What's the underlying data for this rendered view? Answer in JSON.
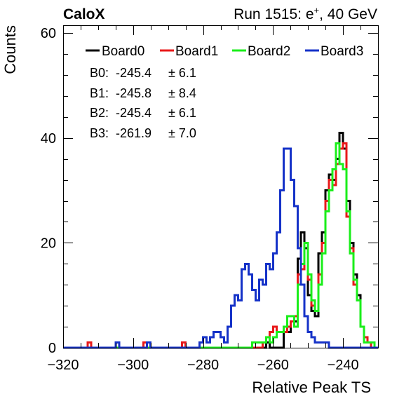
{
  "header": {
    "experiment": "CaloX",
    "run_prefix": "Run 1515: e",
    "run_sup": "+",
    "run_suffix": ", 40 GeV"
  },
  "stats": [
    {
      "label": "B0:",
      "mean": "-245.4",
      "err": "± 6.1"
    },
    {
      "label": "B1:",
      "mean": "-245.8",
      "err": "± 8.4"
    },
    {
      "label": "B2:",
      "mean": "-245.4",
      "err": "± 6.1"
    },
    {
      "label": "B3:",
      "mean": "-261.9",
      "err": "± 7.0"
    }
  ],
  "chart_data": {
    "type": "step",
    "xlabel": "Relative Peak TS",
    "ylabel": "Counts",
    "xlim": [
      -320,
      -230
    ],
    "ylim": [
      0,
      61.5
    ],
    "x_ticks": [
      -320,
      -300,
      -280,
      -260,
      -240
    ],
    "y_ticks": [
      0,
      20,
      40,
      60
    ],
    "bin_width": 1,
    "grid": false,
    "legend": "top",
    "series": [
      {
        "name": "Board0",
        "color": "#000000",
        "bins": [
          [
            -262,
            1
          ],
          [
            -257,
            4
          ],
          [
            -256,
            3
          ],
          [
            -255,
            5
          ],
          [
            -254,
            5
          ],
          [
            -253,
            17
          ],
          [
            -252,
            22
          ],
          [
            -251,
            19
          ],
          [
            -250,
            10
          ],
          [
            -249,
            7
          ],
          [
            -248,
            6
          ],
          [
            -247,
            18
          ],
          [
            -246,
            22
          ],
          [
            -245,
            30
          ],
          [
            -244,
            33
          ],
          [
            -243,
            32
          ],
          [
            -242,
            36
          ],
          [
            -241,
            41
          ],
          [
            -240,
            38
          ],
          [
            -239,
            28
          ],
          [
            -238,
            20
          ],
          [
            -237,
            14
          ],
          [
            -236,
            10
          ],
          [
            -235,
            4
          ],
          [
            -234,
            2
          ],
          [
            -233,
            1
          ]
        ]
      },
      {
        "name": "Board1",
        "color": "#e8191a",
        "bins": [
          [
            -313,
            1
          ],
          [
            -305,
            1
          ],
          [
            -297,
            1
          ],
          [
            -286,
            1
          ],
          [
            -263,
            1
          ],
          [
            -262,
            2
          ],
          [
            -261,
            3
          ],
          [
            -260,
            4
          ],
          [
            -259,
            3
          ],
          [
            -258,
            3
          ],
          [
            -257,
            3
          ],
          [
            -256,
            4
          ],
          [
            -255,
            5
          ],
          [
            -254,
            6
          ],
          [
            -253,
            14
          ],
          [
            -252,
            15
          ],
          [
            -251,
            20
          ],
          [
            -250,
            13
          ],
          [
            -249,
            8
          ],
          [
            -248,
            7
          ],
          [
            -247,
            14
          ],
          [
            -246,
            20
          ],
          [
            -245,
            28
          ],
          [
            -244,
            32
          ],
          [
            -243,
            31
          ],
          [
            -242,
            35
          ],
          [
            -241,
            38
          ],
          [
            -240,
            39
          ],
          [
            -239,
            25
          ],
          [
            -238,
            19
          ],
          [
            -237,
            12
          ],
          [
            -236,
            9
          ],
          [
            -235,
            4
          ],
          [
            -234,
            2
          ],
          [
            -233,
            1
          ]
        ]
      },
      {
        "name": "Board2",
        "color": "#1aee1a",
        "bins": [
          [
            -266,
            1
          ],
          [
            -265,
            1
          ],
          [
            -264,
            1
          ],
          [
            -263,
            1
          ],
          [
            -262,
            2
          ],
          [
            -261,
            1
          ],
          [
            -260,
            2
          ],
          [
            -259,
            3
          ],
          [
            -258,
            3
          ],
          [
            -257,
            4
          ],
          [
            -256,
            6
          ],
          [
            -255,
            6
          ],
          [
            -254,
            4
          ],
          [
            -253,
            12
          ],
          [
            -252,
            16
          ],
          [
            -251,
            20
          ],
          [
            -250,
            14
          ],
          [
            -249,
            9
          ],
          [
            -248,
            7
          ],
          [
            -247,
            12
          ],
          [
            -246,
            18
          ],
          [
            -245,
            26
          ],
          [
            -244,
            30
          ],
          [
            -243,
            34
          ],
          [
            -242,
            39
          ],
          [
            -241,
            35
          ],
          [
            -240,
            34
          ],
          [
            -239,
            26
          ],
          [
            -238,
            18
          ],
          [
            -237,
            13
          ],
          [
            -236,
            9
          ],
          [
            -235,
            4
          ],
          [
            -234,
            1
          ],
          [
            -233,
            1
          ],
          [
            -232,
            1
          ]
        ]
      },
      {
        "name": "Board3",
        "color": "#1532c8",
        "bins": [
          [
            -305,
            1
          ],
          [
            -296,
            1
          ],
          [
            -281,
            1
          ],
          [
            -280,
            2
          ],
          [
            -279,
            1
          ],
          [
            -278,
            2
          ],
          [
            -277,
            3
          ],
          [
            -276,
            3
          ],
          [
            -275,
            2
          ],
          [
            -274,
            1
          ],
          [
            -273,
            4
          ],
          [
            -272,
            8
          ],
          [
            -271,
            10
          ],
          [
            -270,
            9
          ],
          [
            -269,
            15
          ],
          [
            -268,
            16
          ],
          [
            -267,
            14
          ],
          [
            -266,
            11
          ],
          [
            -265,
            9
          ],
          [
            -264,
            13
          ],
          [
            -263,
            12
          ],
          [
            -262,
            16
          ],
          [
            -261,
            15
          ],
          [
            -260,
            18
          ],
          [
            -259,
            22
          ],
          [
            -258,
            30
          ],
          [
            -257,
            38
          ],
          [
            -256,
            38
          ],
          [
            -255,
            32
          ],
          [
            -254,
            27
          ],
          [
            -253,
            19
          ],
          [
            -252,
            12
          ],
          [
            -251,
            6
          ],
          [
            -250,
            3
          ],
          [
            -249,
            2
          ],
          [
            -248,
            1
          ],
          [
            -247,
            1
          ],
          [
            -246,
            1
          ],
          [
            -245,
            1
          ]
        ]
      }
    ]
  }
}
